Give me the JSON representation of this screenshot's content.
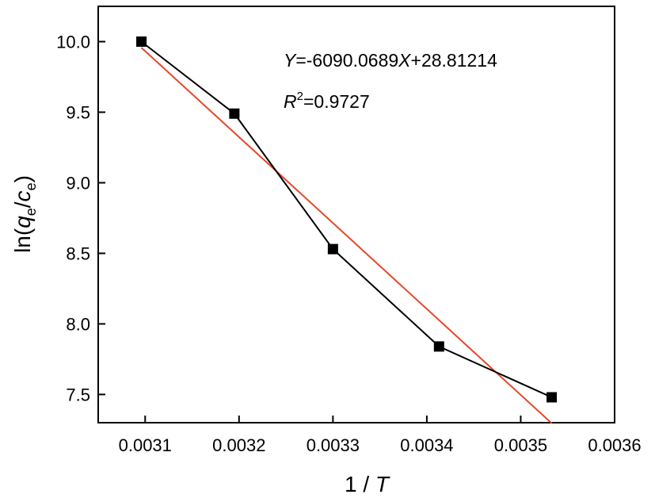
{
  "chart_data": {
    "type": "scatter",
    "xlabel": "1 / T",
    "ylabel": "ln(qe/ce)",
    "xlim": [
      0.00305,
      0.0036
    ],
    "ylim": [
      7.3,
      10.25
    ],
    "xticks": [
      "0.0031",
      "0.0032",
      "0.0033",
      "0.0034",
      "0.0035",
      "0.0036"
    ],
    "yticks": [
      "7.5",
      "8.0",
      "8.5",
      "9.0",
      "9.5",
      "10.0"
    ],
    "series": [
      {
        "x": [
          0.003096,
          0.003195,
          0.0033,
          0.003413,
          0.003533
        ],
        "y": [
          10.0,
          9.49,
          8.53,
          7.84,
          7.48
        ],
        "color": "#000000",
        "marker": "square",
        "connected": true
      }
    ],
    "fit_line": {
      "slope": -6090.0689,
      "intercept": 28.81214,
      "x_range": [
        0.003096,
        0.003533
      ],
      "color": "#e8472a"
    },
    "annotations": {
      "equation": "Y=-6090.0689X+28.81214",
      "r2": "R²=0.9727"
    },
    "grid": false
  }
}
